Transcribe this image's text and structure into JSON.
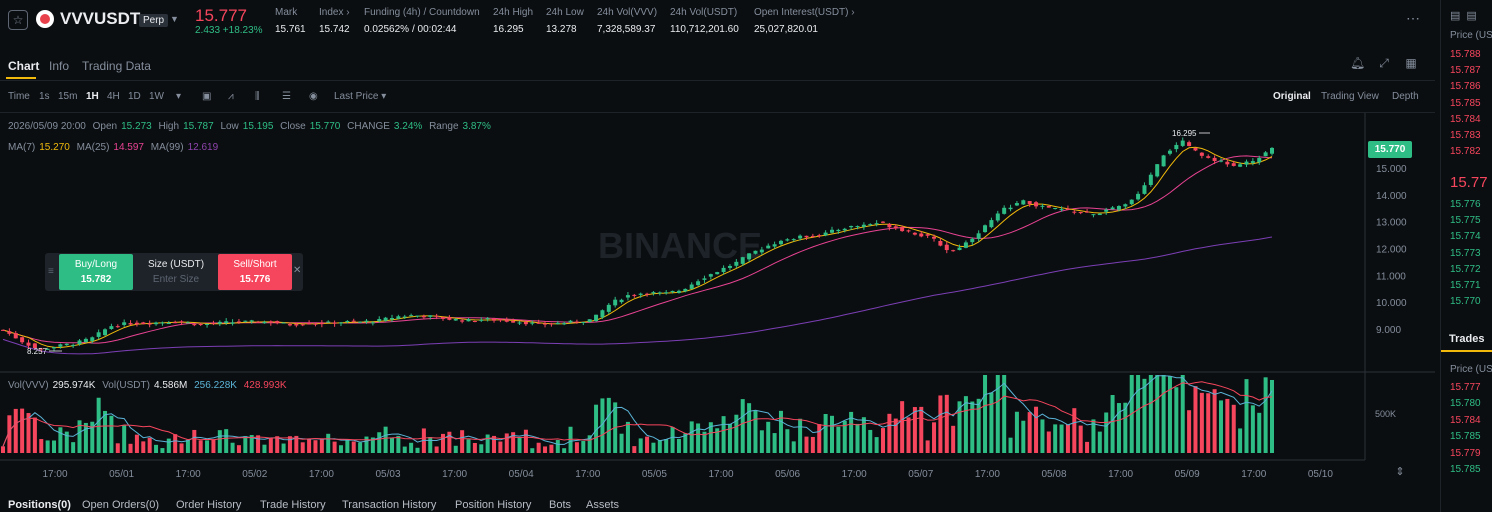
{
  "header": {
    "symbol": "VVVUSDT",
    "badge": "Perp",
    "last_price": "15.777",
    "change": "2.433 +18.23%",
    "stats": [
      {
        "label": "Mark",
        "value": "15.761"
      },
      {
        "label": "Index ›",
        "value": "15.742"
      },
      {
        "label": "Funding (4h) / Countdown",
        "value": "0.02562%",
        "value2": "/ 00:02:44"
      },
      {
        "label": "24h High",
        "value": "16.295"
      },
      {
        "label": "24h Low",
        "value": "13.278"
      },
      {
        "label": "24h Vol(VVV)",
        "value": "7,328,589.37"
      },
      {
        "label": "24h Vol(USDT)",
        "value": "110,712,201.60"
      },
      {
        "label": "Open Interest(USDT) ›",
        "value": "25,027,820.01"
      }
    ]
  },
  "tabs": [
    "Chart",
    "Info",
    "Trading Data"
  ],
  "toolbar": {
    "intervals": [
      "Time",
      "1s",
      "15m",
      "1H",
      "4H",
      "1D",
      "1W"
    ],
    "active_interval": "1H",
    "price_type": "Last Price",
    "views": [
      "Original",
      "Trading View",
      "Depth"
    ]
  },
  "ohlc": {
    "time": "2026/05/09 20:00",
    "open_label": "Open",
    "open": "15.273",
    "high_label": "High",
    "high": "15.787",
    "low_label": "Low",
    "low": "15.195",
    "close_label": "Close",
    "close": "15.770",
    "change_label": "CHANGE",
    "change": "3.24%",
    "range_label": "Range",
    "range": "3.87%"
  },
  "ma": {
    "ma7_label": "MA(7)",
    "ma7": "15.270",
    "ma25_label": "MA(25)",
    "ma25": "14.597",
    "ma99_label": "MA(99)",
    "ma99": "12.619"
  },
  "volume": {
    "vvv_label": "Vol(VVV)",
    "vvv": "295.974K",
    "usdt_label": "Vol(USDT)",
    "usdt": "4.586M",
    "ma1": "256.228K",
    "ma2": "428.993K",
    "axis": "500K"
  },
  "trade_widget": {
    "buy_label": "Buy/Long",
    "buy_price": "15.782",
    "size_label": "Size (USDT)",
    "size_placeholder": "Enter Size",
    "sell_label": "Sell/Short",
    "sell_price": "15.776"
  },
  "watermark": "BINANCE",
  "chart_data": {
    "type": "candlestick",
    "high_marker": "16.295",
    "low_marker": "8.257",
    "current_price": "15.770",
    "y_ticks": [
      "15.000",
      "14.000",
      "13.000",
      "12.000",
      "11.000",
      "10.000",
      "9.000"
    ],
    "x_ticks": [
      "17:00",
      "05/01",
      "17:00",
      "05/02",
      "17:00",
      "05/03",
      "17:00",
      "05/04",
      "17:00",
      "05/05",
      "17:00",
      "05/06",
      "17:00",
      "05/07",
      "17:00",
      "05/08",
      "17:00",
      "05/09",
      "17:00",
      "05/10"
    ],
    "ylim": [
      8.0,
      16.5
    ],
    "close_path": [
      9.0,
      8.6,
      8.26,
      8.4,
      8.5,
      8.7,
      9.15,
      9.25,
      9.25,
      9.3,
      9.3,
      9.2,
      9.25,
      9.3,
      9.3,
      9.3,
      9.2,
      9.25,
      9.25,
      9.3,
      9.3,
      9.35,
      9.5,
      9.55,
      9.5,
      9.4,
      9.35,
      9.4,
      9.35,
      9.3,
      9.2,
      9.25,
      9.3,
      9.4,
      10.0,
      10.3,
      10.4,
      10.35,
      10.5,
      10.9,
      11.2,
      11.5,
      11.9,
      12.2,
      12.4,
      12.5,
      12.6,
      12.8,
      12.9,
      13.0,
      12.8,
      12.6,
      12.4,
      11.9,
      12.3,
      12.9,
      13.5,
      13.8,
      13.6,
      13.5,
      13.4,
      13.3,
      13.5,
      13.7,
      14.5,
      15.6,
      16.0,
      15.5,
      15.3,
      15.1,
      15.3,
      15.77
    ]
  },
  "positions_tabs": [
    "Positions(0)",
    "Open Orders(0)",
    "Order History",
    "Trade History",
    "Transaction History",
    "Position History",
    "Bots",
    "Assets"
  ],
  "right_panel": {
    "price_label": "Price (USDT)",
    "asks": [
      "15.788",
      "15.787",
      "15.786",
      "15.785",
      "15.784",
      "15.783",
      "15.782"
    ],
    "mid": "15.77",
    "bids": [
      "15.776",
      "15.775",
      "15.774",
      "15.773",
      "15.772",
      "15.771",
      "15.770"
    ],
    "trades_title": "Trades",
    "trades_price_label": "Price (USDT)",
    "trades": [
      "15.777",
      "15.780",
      "15.784",
      "15.785",
      "15.779",
      "15.785"
    ]
  }
}
